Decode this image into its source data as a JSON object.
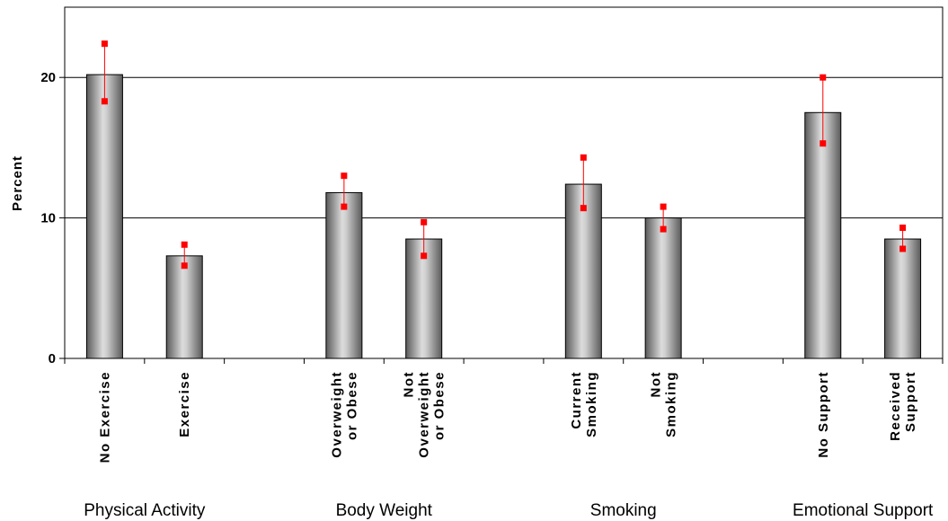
{
  "chart_data": {
    "type": "bar",
    "title": "",
    "xlabel": "",
    "ylabel": "Percent",
    "ylim": [
      0,
      25
    ],
    "yticks": [
      0,
      10,
      20
    ],
    "grid": true,
    "legend": "none",
    "colors": {
      "bar": "#a6a6a6",
      "error": "#ff0000",
      "grid": "#000000"
    },
    "categories": [
      [
        "No Exercise"
      ],
      [
        "Exercise"
      ],
      [
        "Overweight",
        "or Obese"
      ],
      [
        "Not",
        "Overweight",
        "or Obese"
      ],
      [
        "Current",
        "Smoking"
      ],
      [
        "Not",
        "Smoking"
      ],
      [
        "No Support"
      ],
      [
        "Received",
        "Support"
      ]
    ],
    "groups": [
      "Physical Activity",
      "Body Weight",
      "Smoking",
      "Emotional Support"
    ],
    "values": [
      20.2,
      7.3,
      11.8,
      8.5,
      12.4,
      10.0,
      17.5,
      8.5
    ],
    "error_low": [
      18.3,
      6.6,
      10.8,
      7.3,
      10.7,
      9.2,
      15.3,
      7.8
    ],
    "error_high": [
      22.4,
      8.1,
      13.0,
      9.7,
      14.3,
      10.8,
      20.0,
      9.3
    ]
  }
}
